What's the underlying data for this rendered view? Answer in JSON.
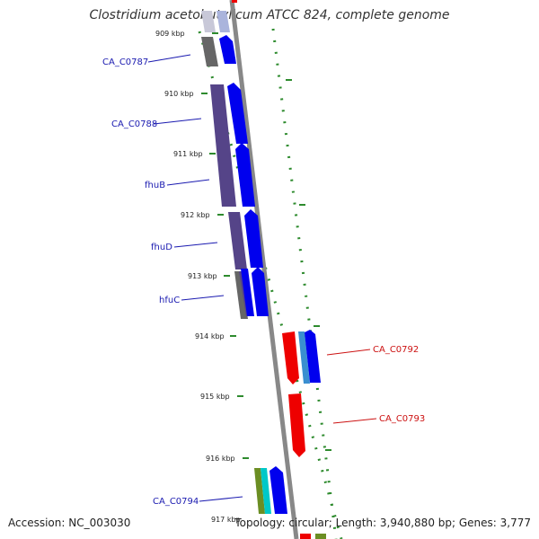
{
  "title": "Clostridium acetobutylicum ATCC 824, complete genome",
  "footer": {
    "accession": "Accession: NC_003030",
    "topology": "Topology: circular; Length: 3,940,880 bp; Genes: 3,777"
  },
  "colors": {
    "backbone": "#888888",
    "gc_dots": "#2e8b2e",
    "forward_cds": "#0000ee",
    "reverse_cds": "#ee0000",
    "transport_cds": "#554488",
    "hypothetical_cds": "#666666",
    "label_forward": "#1a1ab0",
    "label_reverse": "#cc1111"
  },
  "ticks": [
    {
      "label": "909 kbp"
    },
    {
      "label": "910 kbp"
    },
    {
      "label": "911 kbp"
    },
    {
      "label": "912 kbp"
    },
    {
      "label": "913 kbp"
    },
    {
      "label": "914 kbp"
    },
    {
      "label": "915 kbp"
    },
    {
      "label": "916 kbp"
    },
    {
      "label": "917 kbp"
    }
  ],
  "genes": [
    {
      "name": "CA_C0787",
      "strand": "forward"
    },
    {
      "name": "CA_C0788",
      "strand": "forward"
    },
    {
      "name": "fhuB",
      "strand": "forward"
    },
    {
      "name": "fhuD",
      "strand": "forward"
    },
    {
      "name": "hfuC",
      "strand": "forward"
    },
    {
      "name": "CA_C0792",
      "strand": "reverse"
    },
    {
      "name": "CA_C0793",
      "strand": "reverse"
    },
    {
      "name": "CA_C0794",
      "strand": "forward"
    }
  ]
}
